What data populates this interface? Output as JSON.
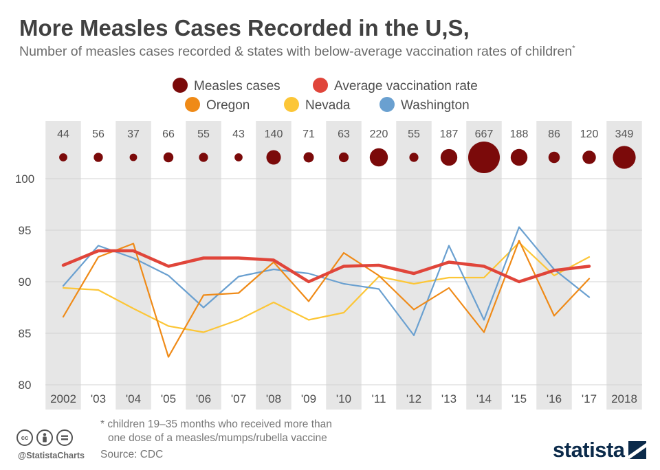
{
  "title": "More Measles Cases Recorded in the U,S,",
  "subtitle": "Number of measles cases recorded & states with below-average vaccination rates of children",
  "subtitle_marker": "*",
  "footnote_line1": "* children 19–35 months who received more than",
  "footnote_line2": "one dose of a measles/mumps/rubella vaccine",
  "source": "Source: CDC",
  "handle": "@StatistaCharts",
  "brand": "statista",
  "license_icons": [
    "cc",
    "by",
    "nd"
  ],
  "chart_data": {
    "type": "line",
    "categories": [
      "2002",
      "'03",
      "'04",
      "'05",
      "'06",
      "'07",
      "'08",
      "'09",
      "'10",
      "'11",
      "'12",
      "'13",
      "'14",
      "'15",
      "'16",
      "'17",
      "2018"
    ],
    "measles_cases": [
      44,
      56,
      37,
      66,
      55,
      43,
      140,
      71,
      63,
      220,
      55,
      187,
      667,
      188,
      86,
      120,
      349
    ],
    "ylim": [
      80,
      100
    ],
    "yticks": [
      80,
      85,
      90,
      95,
      100
    ],
    "legend": [
      {
        "label": "Measles cases",
        "color": "#7b0a0a"
      },
      {
        "label": "Average vaccination rate",
        "color": "#e0453a"
      },
      {
        "label": "Oregon",
        "color": "#ef8a17"
      },
      {
        "label": "Nevada",
        "color": "#fcc637"
      },
      {
        "label": "Washington",
        "color": "#6aa0d0"
      }
    ],
    "series": [
      {
        "name": "Average vaccination rate",
        "color": "#e0453a",
        "values": [
          91.6,
          93.0,
          93.0,
          91.5,
          92.3,
          92.3,
          92.1,
          90.0,
          91.5,
          91.6,
          90.8,
          91.9,
          91.5,
          90.0,
          91.1,
          91.5,
          null
        ]
      },
      {
        "name": "Oregon",
        "color": "#ef8a17",
        "values": [
          86.6,
          92.4,
          93.7,
          82.7,
          88.7,
          88.9,
          91.9,
          88.1,
          92.8,
          90.6,
          87.3,
          89.4,
          85.1,
          94.0,
          86.7,
          90.3,
          null
        ]
      },
      {
        "name": "Nevada",
        "color": "#fcc637",
        "values": [
          89.4,
          89.2,
          87.4,
          85.7,
          85.1,
          86.3,
          88.0,
          86.3,
          87.0,
          90.5,
          89.8,
          90.4,
          90.4,
          93.8,
          90.6,
          92.4,
          null
        ]
      },
      {
        "name": "Washington",
        "color": "#6aa0d0",
        "values": [
          89.6,
          93.5,
          92.3,
          90.6,
          87.5,
          90.5,
          91.2,
          90.8,
          89.8,
          89.3,
          84.8,
          93.5,
          86.3,
          95.3,
          91.2,
          88.5,
          null
        ]
      }
    ]
  }
}
